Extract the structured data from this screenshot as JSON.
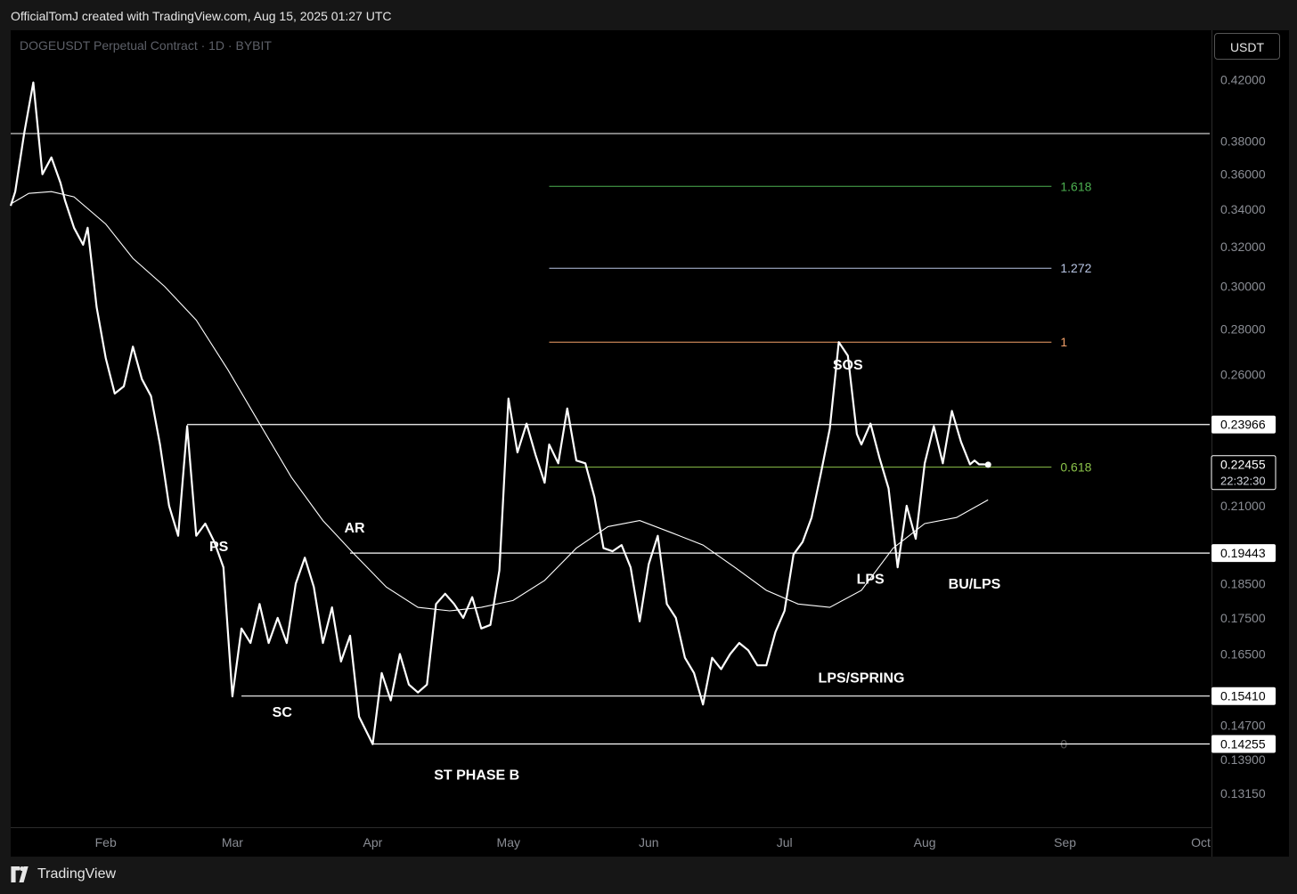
{
  "header": {
    "attribution": "OfficialTomJ created with TradingView.com, Aug 15, 2025 01:27 UTC"
  },
  "symbol": {
    "title": "DOGEUSDT Perpetual Contract · 1D · BYBIT"
  },
  "price_scale": {
    "currency": "USDT"
  },
  "footer": {
    "logo_text": "TradingView"
  },
  "colors": {
    "background": "#000000",
    "price_line": "#ffffff",
    "fib_1618": "#4caf50",
    "fib_1272": "#b7c4e3",
    "fib_1": "#f2a069",
    "fib_0618": "#8bc34a",
    "fib_0": "#555555"
  },
  "chart_data": {
    "type": "line",
    "title": "DOGEUSDT Perpetual Contract · 1D · BYBIT",
    "x_ticks": [
      "Feb",
      "Mar",
      "Apr",
      "May",
      "Jun",
      "Jul",
      "Aug",
      "Sep",
      "Oct"
    ],
    "y_ticks": [
      "0.42000",
      "0.38000",
      "0.36000",
      "0.34000",
      "0.32000",
      "0.30000",
      "0.28000",
      "0.26000",
      "0.21000",
      "0.18500",
      "0.17500",
      "0.16500",
      "0.14700",
      "0.13900",
      "0.13150"
    ],
    "y_scale": "log",
    "ylim": [
      0.1245,
      0.455
    ],
    "xlim": [
      "2025-01-11",
      "2025-10-01"
    ],
    "grid": false,
    "series": [
      {
        "style": "price",
        "x": [
          "2025-01-11",
          "2025-01-12",
          "2025-01-14",
          "2025-01-16",
          "2025-01-18",
          "2025-01-20",
          "2025-01-22",
          "2025-01-23",
          "2025-01-25",
          "2025-01-27",
          "2025-01-28",
          "2025-01-30",
          "2025-02-01",
          "2025-02-03",
          "2025-02-05",
          "2025-02-07",
          "2025-02-09",
          "2025-02-11",
          "2025-02-13",
          "2025-02-15",
          "2025-02-17",
          "2025-02-19",
          "2025-02-21",
          "2025-02-23",
          "2025-02-25",
          "2025-02-27",
          "2025-03-01",
          "2025-03-03",
          "2025-03-05",
          "2025-03-07",
          "2025-03-09",
          "2025-03-11",
          "2025-03-13",
          "2025-03-15",
          "2025-03-17",
          "2025-03-19",
          "2025-03-21",
          "2025-03-23",
          "2025-03-25",
          "2025-03-27",
          "2025-03-29",
          "2025-04-01",
          "2025-04-03",
          "2025-04-05",
          "2025-04-07",
          "2025-04-09",
          "2025-04-11",
          "2025-04-13",
          "2025-04-15",
          "2025-04-17",
          "2025-04-19",
          "2025-04-21",
          "2025-04-23",
          "2025-04-25",
          "2025-04-27",
          "2025-04-29",
          "2025-05-01",
          "2025-05-03",
          "2025-05-05",
          "2025-05-07",
          "2025-05-09",
          "2025-05-10",
          "2025-05-12",
          "2025-05-14",
          "2025-05-16",
          "2025-05-18",
          "2025-05-20",
          "2025-05-22",
          "2025-05-24",
          "2025-05-26",
          "2025-05-28",
          "2025-05-30",
          "2025-06-01",
          "2025-06-03",
          "2025-06-05",
          "2025-06-07",
          "2025-06-09",
          "2025-06-11",
          "2025-06-13",
          "2025-06-15",
          "2025-06-17",
          "2025-06-19",
          "2025-06-21",
          "2025-06-23",
          "2025-06-25",
          "2025-06-27",
          "2025-06-29",
          "2025-07-01",
          "2025-07-03",
          "2025-07-05",
          "2025-07-07",
          "2025-07-09",
          "2025-07-11",
          "2025-07-13",
          "2025-07-15",
          "2025-07-17",
          "2025-07-18",
          "2025-07-20",
          "2025-07-22",
          "2025-07-24",
          "2025-07-26",
          "2025-07-28",
          "2025-07-30",
          "2025-08-01",
          "2025-08-03",
          "2025-08-05",
          "2025-08-07",
          "2025-08-09",
          "2025-08-11",
          "2025-08-12",
          "2025-08-13",
          "2025-08-14",
          "2025-08-15"
        ],
        "values": [
          0.342,
          0.35,
          0.385,
          0.418,
          0.36,
          0.37,
          0.355,
          0.345,
          0.33,
          0.321,
          0.33,
          0.29,
          0.267,
          0.252,
          0.255,
          0.272,
          0.258,
          0.251,
          0.232,
          0.21,
          0.2,
          0.239,
          0.2,
          0.204,
          0.198,
          0.19,
          0.154,
          0.172,
          0.168,
          0.179,
          0.168,
          0.175,
          0.168,
          0.185,
          0.193,
          0.184,
          0.168,
          0.178,
          0.163,
          0.17,
          0.149,
          0.1425,
          0.16,
          0.153,
          0.165,
          0.157,
          0.155,
          0.157,
          0.179,
          0.182,
          0.179,
          0.175,
          0.181,
          0.172,
          0.173,
          0.189,
          0.25,
          0.229,
          0.24,
          0.228,
          0.218,
          0.232,
          0.225,
          0.246,
          0.226,
          0.225,
          0.213,
          0.196,
          0.195,
          0.197,
          0.19,
          0.174,
          0.191,
          0.2,
          0.179,
          0.175,
          0.164,
          0.16,
          0.152,
          0.164,
          0.161,
          0.165,
          0.168,
          0.166,
          0.162,
          0.162,
          0.171,
          0.177,
          0.194,
          0.198,
          0.206,
          0.221,
          0.238,
          0.274,
          0.268,
          0.236,
          0.232,
          0.24,
          0.227,
          0.216,
          0.19,
          0.21,
          0.199,
          0.225,
          0.239,
          0.225,
          0.245,
          0.233,
          0.2246,
          0.226,
          0.2246,
          0.2246,
          0.2245
        ]
      },
      {
        "style": "moving-average",
        "x": [
          "2025-01-11",
          "2025-01-15",
          "2025-01-20",
          "2025-01-25",
          "2025-02-01",
          "2025-02-07",
          "2025-02-14",
          "2025-02-21",
          "2025-02-28",
          "2025-03-07",
          "2025-03-14",
          "2025-03-21",
          "2025-03-28",
          "2025-04-04",
          "2025-04-11",
          "2025-04-18",
          "2025-04-25",
          "2025-05-02",
          "2025-05-09",
          "2025-05-16",
          "2025-05-23",
          "2025-05-30",
          "2025-06-06",
          "2025-06-13",
          "2025-06-20",
          "2025-06-27",
          "2025-07-04",
          "2025-07-11",
          "2025-07-18",
          "2025-07-25",
          "2025-08-01",
          "2025-08-08",
          "2025-08-15"
        ],
        "values": [
          0.343,
          0.349,
          0.35,
          0.347,
          0.332,
          0.314,
          0.3,
          0.284,
          0.262,
          0.24,
          0.22,
          0.205,
          0.194,
          0.184,
          0.178,
          0.177,
          0.178,
          0.18,
          0.186,
          0.196,
          0.203,
          0.205,
          0.201,
          0.197,
          0.19,
          0.183,
          0.179,
          0.178,
          0.183,
          0.196,
          0.204,
          0.206,
          0.212
        ]
      }
    ],
    "horizontal_levels": [
      {
        "value": 0.23966,
        "label": "0.23966"
      },
      {
        "value": 0.19443,
        "label": "0.19443"
      },
      {
        "value": 0.1541,
        "label": "0.15410"
      },
      {
        "value": 0.14255,
        "label": "0.14255"
      }
    ],
    "current_price": {
      "value": 0.22455,
      "label": "0.22455",
      "countdown": "22:32:30"
    },
    "fib_levels": [
      {
        "label": "1.618",
        "value": 0.353,
        "color_key": "fib_1618"
      },
      {
        "label": "1.272",
        "value": 0.309,
        "color_key": "fib_1272"
      },
      {
        "label": "1",
        "value": 0.274,
        "color_key": "fib_1"
      },
      {
        "label": "0.618",
        "value": 0.2236,
        "color_key": "fib_0618"
      },
      {
        "label": "0",
        "value": 0.14255,
        "color_key": "fib_0"
      }
    ],
    "annotations": [
      {
        "text": "PS",
        "x": "2025-02-26",
        "y": 0.195
      },
      {
        "text": "SC",
        "x": "2025-03-12",
        "y": 0.149
      },
      {
        "text": "AR",
        "x": "2025-03-28",
        "y": 0.201
      },
      {
        "text": "ST PHASE B",
        "x": "2025-04-24",
        "y": 0.1345
      },
      {
        "text": "SOS",
        "x": "2025-07-15",
        "y": 0.262
      },
      {
        "text": "LPS",
        "x": "2025-07-20",
        "y": 0.185
      },
      {
        "text": "LPS/SPRING",
        "x": "2025-07-18",
        "y": 0.1575
      },
      {
        "text": "BU/LPS",
        "x": "2025-08-12",
        "y": 0.1835
      }
    ]
  }
}
